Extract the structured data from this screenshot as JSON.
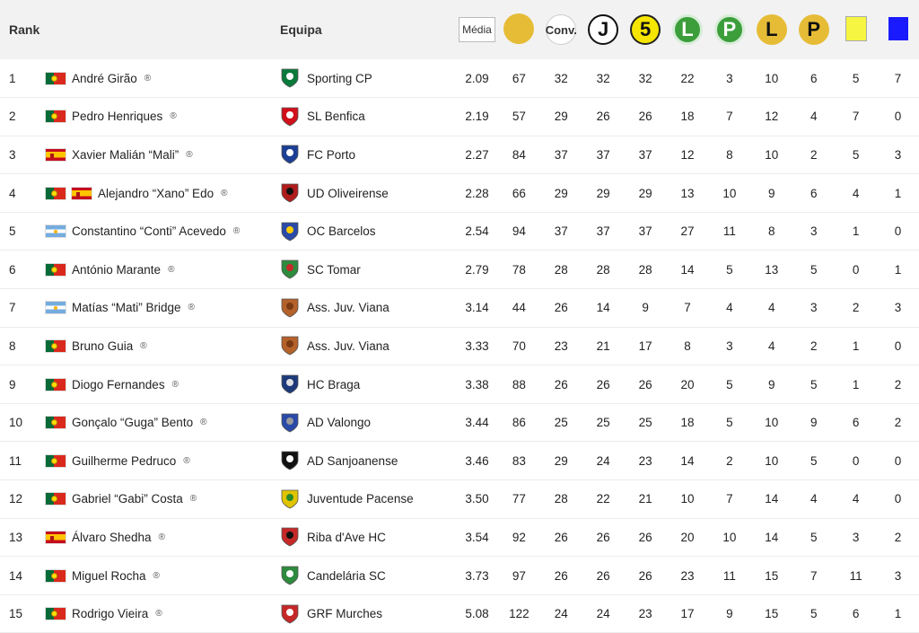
{
  "header": {
    "rank": "Rank",
    "team": "Equipa",
    "media": "Média",
    "conv": "Conv.",
    "j": "J",
    "five": "5",
    "l1": "L",
    "p1": "P",
    "l2": "L",
    "p2": "P"
  },
  "colors": {
    "gold": "#e6bc37",
    "green": "#3b9e3b",
    "yellow_card": "#f5f542",
    "blue_card": "#1a1aff"
  },
  "rows": [
    {
      "rank": "1",
      "flags": [
        "pt"
      ],
      "player": "André Girão",
      "mark": "®",
      "team": "Sporting CP",
      "crest": "sporting-crest-icon",
      "media": "2.09",
      "gold": "67",
      "conv": "32",
      "j": "32",
      "five": "32",
      "l1": "22",
      "p1": "3",
      "l2": "10",
      "p2": "6",
      "yellow": "5",
      "blue": "7"
    },
    {
      "rank": "2",
      "flags": [
        "pt"
      ],
      "player": "Pedro Henriques",
      "mark": "®",
      "team": "SL Benfica",
      "crest": "benfica-crest-icon",
      "media": "2.19",
      "gold": "57",
      "conv": "29",
      "j": "26",
      "five": "26",
      "l1": "18",
      "p1": "7",
      "l2": "12",
      "p2": "4",
      "yellow": "7",
      "blue": "0"
    },
    {
      "rank": "3",
      "flags": [
        "es"
      ],
      "player": "Xavier Malián “Mali”",
      "mark": "®",
      "team": "FC Porto",
      "crest": "porto-crest-icon",
      "media": "2.27",
      "gold": "84",
      "conv": "37",
      "j": "37",
      "five": "37",
      "l1": "12",
      "p1": "8",
      "l2": "10",
      "p2": "2",
      "yellow": "5",
      "blue": "3"
    },
    {
      "rank": "4",
      "flags": [
        "pt",
        "es"
      ],
      "player": "Alejandro “Xano” Edo",
      "mark": "®",
      "team": "UD Oliveirense",
      "crest": "oliveirense-crest-icon",
      "media": "2.28",
      "gold": "66",
      "conv": "29",
      "j": "29",
      "five": "29",
      "l1": "13",
      "p1": "10",
      "l2": "9",
      "p2": "6",
      "yellow": "4",
      "blue": "1"
    },
    {
      "rank": "5",
      "flags": [
        "ar"
      ],
      "player": "Constantino “Conti” Acevedo",
      "mark": "®",
      "team": "OC Barcelos",
      "crest": "barcelos-crest-icon",
      "media": "2.54",
      "gold": "94",
      "conv": "37",
      "j": "37",
      "five": "37",
      "l1": "27",
      "p1": "11",
      "l2": "8",
      "p2": "3",
      "yellow": "1",
      "blue": "0"
    },
    {
      "rank": "6",
      "flags": [
        "pt"
      ],
      "player": "António Marante",
      "mark": "®",
      "team": "SC Tomar",
      "crest": "tomar-crest-icon",
      "media": "2.79",
      "gold": "78",
      "conv": "28",
      "j": "28",
      "five": "28",
      "l1": "14",
      "p1": "5",
      "l2": "13",
      "p2": "5",
      "yellow": "0",
      "blue": "1"
    },
    {
      "rank": "7",
      "flags": [
        "ar"
      ],
      "player": "Matías “Mati” Bridge",
      "mark": "®",
      "team": "Ass. Juv. Viana",
      "crest": "viana-crest-icon",
      "media": "3.14",
      "gold": "44",
      "conv": "26",
      "j": "14",
      "five": "9",
      "l1": "7",
      "p1": "4",
      "l2": "4",
      "p2": "3",
      "yellow": "2",
      "blue": "3"
    },
    {
      "rank": "8",
      "flags": [
        "pt"
      ],
      "player": "Bruno Guia",
      "mark": "®",
      "team": "Ass. Juv. Viana",
      "crest": "viana-crest-icon",
      "media": "3.33",
      "gold": "70",
      "conv": "23",
      "j": "21",
      "five": "17",
      "l1": "8",
      "p1": "3",
      "l2": "4",
      "p2": "2",
      "yellow": "1",
      "blue": "0"
    },
    {
      "rank": "9",
      "flags": [
        "pt"
      ],
      "player": "Diogo Fernandes",
      "mark": "®",
      "team": "HC Braga",
      "crest": "braga-crest-icon",
      "media": "3.38",
      "gold": "88",
      "conv": "26",
      "j": "26",
      "five": "26",
      "l1": "20",
      "p1": "5",
      "l2": "9",
      "p2": "5",
      "yellow": "1",
      "blue": "2"
    },
    {
      "rank": "10",
      "flags": [
        "pt"
      ],
      "player": "Gonçalo “Guga” Bento",
      "mark": "®",
      "team": "AD Valongo",
      "crest": "valongo-crest-icon",
      "media": "3.44",
      "gold": "86",
      "conv": "25",
      "j": "25",
      "five": "25",
      "l1": "18",
      "p1": "5",
      "l2": "10",
      "p2": "9",
      "yellow": "6",
      "blue": "2"
    },
    {
      "rank": "11",
      "flags": [
        "pt"
      ],
      "player": "Guilherme Pedruco",
      "mark": "®",
      "team": "AD Sanjoanense",
      "crest": "sanjoanense-crest-icon",
      "media": "3.46",
      "gold": "83",
      "conv": "29",
      "j": "24",
      "five": "23",
      "l1": "14",
      "p1": "2",
      "l2": "10",
      "p2": "5",
      "yellow": "0",
      "blue": "0"
    },
    {
      "rank": "12",
      "flags": [
        "pt"
      ],
      "player": "Gabriel “Gabi” Costa",
      "mark": "®",
      "team": "Juventude Pacense",
      "crest": "pacense-crest-icon",
      "media": "3.50",
      "gold": "77",
      "conv": "28",
      "j": "22",
      "five": "21",
      "l1": "10",
      "p1": "7",
      "l2": "14",
      "p2": "4",
      "yellow": "4",
      "blue": "0"
    },
    {
      "rank": "13",
      "flags": [
        "es"
      ],
      "player": "Álvaro Shedha",
      "mark": "®",
      "team": "Riba d'Ave HC",
      "crest": "ribadave-crest-icon",
      "media": "3.54",
      "gold": "92",
      "conv": "26",
      "j": "26",
      "five": "26",
      "l1": "20",
      "p1": "10",
      "l2": "14",
      "p2": "5",
      "yellow": "3",
      "blue": "2"
    },
    {
      "rank": "14",
      "flags": [
        "pt"
      ],
      "player": "Miguel Rocha",
      "mark": "®",
      "team": "Candelária SC",
      "crest": "candelaria-crest-icon",
      "media": "3.73",
      "gold": "97",
      "conv": "26",
      "j": "26",
      "five": "26",
      "l1": "23",
      "p1": "11",
      "l2": "15",
      "p2": "7",
      "yellow": "11",
      "blue": "3"
    },
    {
      "rank": "15",
      "flags": [
        "pt"
      ],
      "player": "Rodrigo Vieira",
      "mark": "®",
      "team": "GRF Murches",
      "crest": "murches-crest-icon",
      "media": "5.08",
      "gold": "122",
      "conv": "24",
      "j": "24",
      "five": "23",
      "l1": "17",
      "p1": "9",
      "l2": "15",
      "p2": "5",
      "yellow": "6",
      "blue": "1"
    }
  ]
}
